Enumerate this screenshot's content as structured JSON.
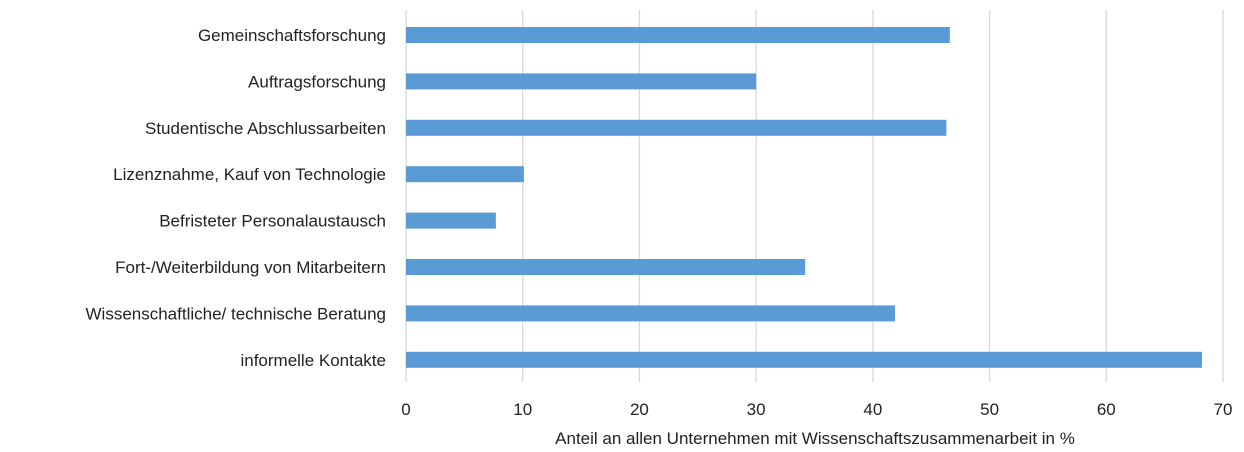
{
  "chart_data": {
    "type": "bar",
    "orientation": "horizontal",
    "categories": [
      "Gemeinschaftsforschung",
      "Auftragsforschung",
      "Studentische Abschlussarbeiten",
      "Lizenznahme, Kauf von Technologie",
      "Befristeter Personalaustausch",
      "Fort-/Weiterbildung von Mitarbeitern",
      "Wissenschaftliche/ technische Beratung",
      "informelle Kontakte"
    ],
    "values": [
      46.6,
      30.0,
      46.3,
      10.1,
      7.7,
      34.2,
      41.9,
      68.2
    ],
    "xlabel": "Anteil an allen Unternehmen mit Wissenschaftszusammenarbeit in %",
    "ylabel": "",
    "title": "",
    "xlim": [
      0,
      70
    ],
    "xticks": [
      0,
      10,
      20,
      30,
      40,
      50,
      60,
      70
    ],
    "grid": true,
    "legend": "none",
    "bar_color": "#5b9bd5",
    "grid_color": "#d9d9d9"
  }
}
